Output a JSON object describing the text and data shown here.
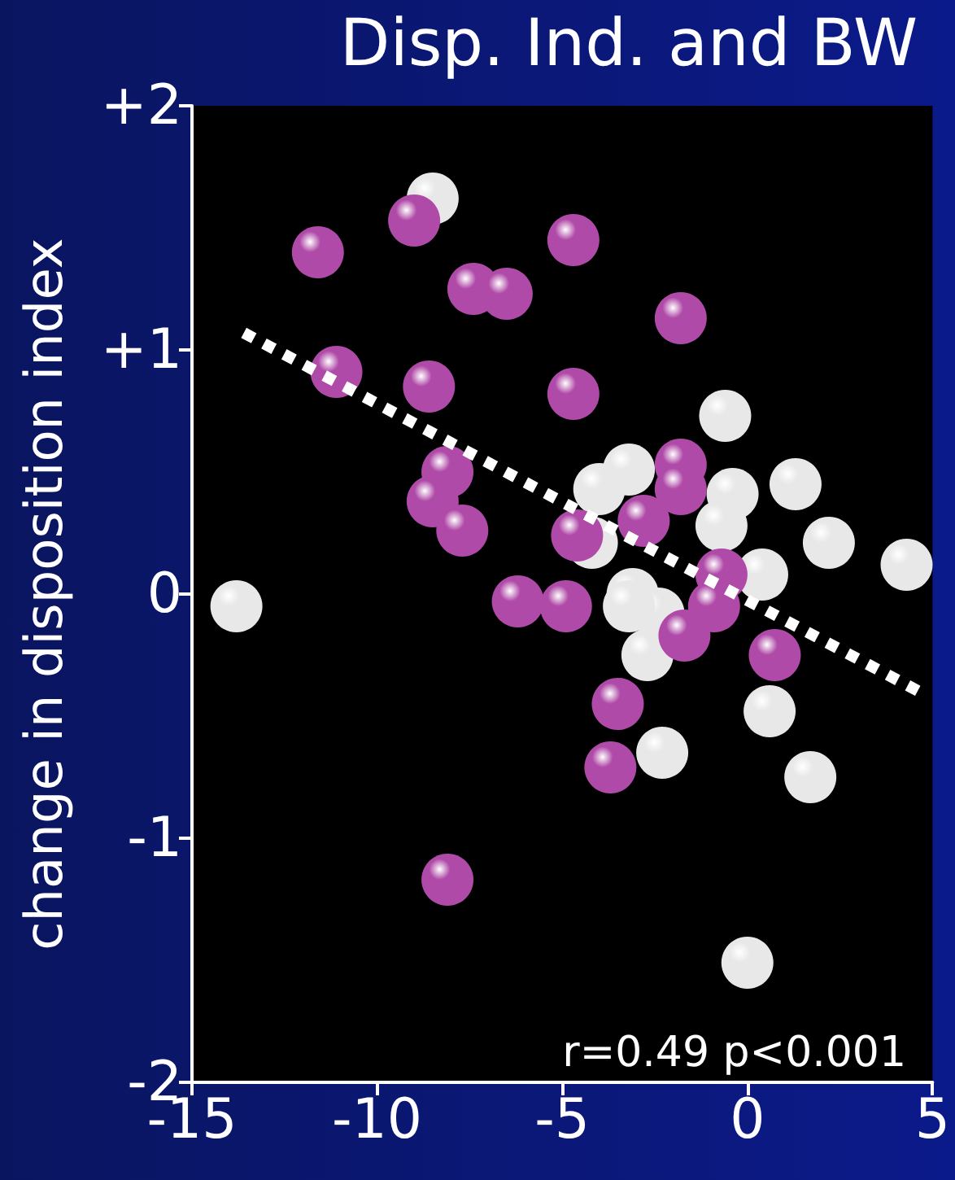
{
  "chart_data": {
    "type": "scatter",
    "title": "Disp. Ind. and BW",
    "ylabel": "change in disposition index",
    "annotations": [
      "r=0.49 p<0.001"
    ],
    "xlim": [
      -15,
      5
    ],
    "xticks": [
      -15,
      -10,
      -5,
      0,
      5
    ],
    "ylim": [
      -2,
      2
    ],
    "yticks": [
      {
        "value": 2,
        "label": "+2"
      },
      {
        "value": 1,
        "label": "+1"
      },
      0,
      -1,
      -2
    ],
    "grid": false,
    "marker": "circle",
    "series": [
      {
        "color": "#e8e8e8",
        "x": [
          -13.8,
          -8.5,
          -0.6,
          -3.2,
          -4.0,
          -0.4,
          1.3,
          -0.7,
          2.2,
          4.3,
          -4.2,
          0.4,
          -3.1,
          -2.4,
          -2.7,
          0.6,
          -2.3,
          1.7,
          0.0,
          -3.2
        ],
        "values": [
          -0.05,
          1.62,
          0.73,
          0.51,
          0.43,
          0.41,
          0.45,
          0.28,
          0.21,
          0.12,
          0.21,
          0.08,
          0.0,
          -0.08,
          -0.25,
          -0.48,
          -0.65,
          -0.75,
          -1.51,
          -0.05
        ]
      },
      {
        "color": "#b04aa8",
        "x": [
          -11.6,
          -9.0,
          -7.4,
          -6.5,
          -4.7,
          -1.8,
          -11.1,
          -8.6,
          -4.7,
          -8.1,
          -8.5,
          -7.7,
          -6.2,
          -4.9,
          -4.6,
          -2.8,
          -1.8,
          -1.8,
          -0.7,
          -0.9,
          0.74,
          -1.7,
          -3.5,
          -3.7,
          -8.1
        ],
        "values": [
          1.4,
          1.53,
          1.25,
          1.23,
          1.45,
          1.13,
          0.91,
          0.85,
          0.82,
          0.5,
          0.38,
          0.26,
          -0.03,
          -0.05,
          0.24,
          0.3,
          0.53,
          0.43,
          0.08,
          -0.05,
          -0.25,
          -0.17,
          -0.45,
          -0.71,
          -1.17
        ]
      },
      {
        "type": "line",
        "color": "#ffffff",
        "line_style": "dotted",
        "marker": "none",
        "x": [
          -13.6,
          4.65
        ],
        "values": [
          1.07,
          -0.4
        ]
      }
    ]
  }
}
